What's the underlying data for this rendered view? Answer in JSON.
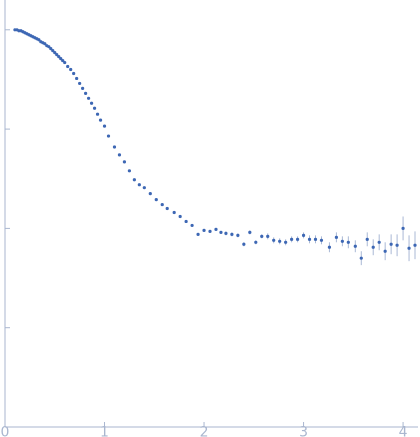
{
  "colors": {
    "axis": "#a9b6cf",
    "tick_text": "#a9b6cf",
    "points": "#3d67b4",
    "errorbars": "#a9b8d5",
    "background": "#ffffff"
  },
  "chart_data": {
    "type": "scatter",
    "xlim": [
      0,
      4.15
    ],
    "ylim": [
      0,
      4.3
    ],
    "y_scale": "log",
    "x_ticks": [
      0,
      1,
      2,
      3,
      4
    ],
    "x_tick_labels": [
      "0",
      "1",
      "2",
      "3",
      "4"
    ],
    "y_ticks": [
      1,
      2,
      3,
      4
    ],
    "y_tick_labels": [
      "",
      "",
      "",
      ""
    ],
    "grid": false,
    "series": [
      {
        "x": [
          0.1,
          0.12,
          0.14,
          0.16,
          0.18,
          0.2,
          0.22,
          0.24,
          0.26,
          0.28,
          0.3,
          0.32,
          0.34,
          0.36,
          0.38,
          0.4,
          0.42,
          0.44,
          0.46,
          0.48,
          0.5,
          0.52,
          0.54,
          0.56,
          0.58,
          0.6,
          0.63,
          0.66,
          0.69,
          0.72,
          0.75,
          0.78,
          0.81,
          0.84,
          0.87,
          0.9,
          0.93,
          0.96,
          1.0,
          1.04,
          1.1,
          1.15,
          1.2,
          1.25,
          1.3,
          1.35,
          1.4,
          1.46,
          1.52,
          1.58,
          1.63,
          1.7,
          1.76,
          1.82,
          1.88,
          1.94,
          2.0,
          2.06,
          2.12,
          2.17,
          2.22,
          2.28,
          2.34,
          2.4,
          2.46,
          2.52,
          2.58,
          2.64,
          2.7,
          2.76,
          2.82,
          2.88,
          2.94,
          3.0,
          3.06,
          3.12,
          3.18,
          3.26,
          3.33,
          3.39,
          3.45,
          3.52,
          3.58,
          3.64,
          3.7,
          3.76,
          3.82,
          3.88,
          3.94,
          4.0,
          4.06,
          4.12
        ],
        "y": [
          4.0,
          4.0,
          3.99,
          3.99,
          3.98,
          3.97,
          3.96,
          3.95,
          3.94,
          3.93,
          3.92,
          3.91,
          3.9,
          3.88,
          3.87,
          3.86,
          3.84,
          3.83,
          3.81,
          3.79,
          3.77,
          3.75,
          3.73,
          3.71,
          3.69,
          3.67,
          3.63,
          3.6,
          3.56,
          3.51,
          3.46,
          3.41,
          3.36,
          3.31,
          3.26,
          3.21,
          3.15,
          3.09,
          3.03,
          2.93,
          2.82,
          2.74,
          2.67,
          2.58,
          2.49,
          2.44,
          2.41,
          2.35,
          2.29,
          2.24,
          2.2,
          2.16,
          2.12,
          2.07,
          2.03,
          1.94,
          1.98,
          1.97,
          1.99,
          1.96,
          1.95,
          1.94,
          1.93,
          1.84,
          1.96,
          1.86,
          1.92,
          1.92,
          1.88,
          1.87,
          1.86,
          1.89,
          1.89,
          1.93,
          1.89,
          1.89,
          1.88,
          1.81,
          1.91,
          1.87,
          1.86,
          1.82,
          1.7,
          1.89,
          1.81,
          1.86,
          1.77,
          1.84,
          1.83,
          2.0,
          1.8,
          1.83
        ],
        "error": [
          0.0,
          0.0,
          0.0,
          0.0,
          0.0,
          0.0,
          0.0,
          0.0,
          0.0,
          0.0,
          0.0,
          0.0,
          0.0,
          0.0,
          0.0,
          0.0,
          0.0,
          0.0,
          0.0,
          0.0,
          0.0,
          0.0,
          0.0,
          0.0,
          0.0,
          0.0,
          0.0,
          0.0,
          0.0,
          0.0,
          0.0,
          0.0,
          0.0,
          0.0,
          0.0,
          0.0,
          0.0,
          0.0,
          0.0,
          0.0,
          0.0,
          0.0,
          0.0,
          0.0,
          0.0,
          0.0,
          0.0,
          0.0,
          0.0,
          0.0,
          0.0,
          0.0,
          0.0,
          0.0,
          0.0,
          0.0,
          0.01,
          0.01,
          0.01,
          0.01,
          0.02,
          0.02,
          0.02,
          0.02,
          0.02,
          0.02,
          0.02,
          0.03,
          0.03,
          0.03,
          0.03,
          0.03,
          0.03,
          0.03,
          0.04,
          0.04,
          0.04,
          0.05,
          0.05,
          0.05,
          0.06,
          0.06,
          0.07,
          0.07,
          0.08,
          0.08,
          0.09,
          0.1,
          0.11,
          0.12,
          0.13,
          0.14
        ]
      }
    ]
  }
}
